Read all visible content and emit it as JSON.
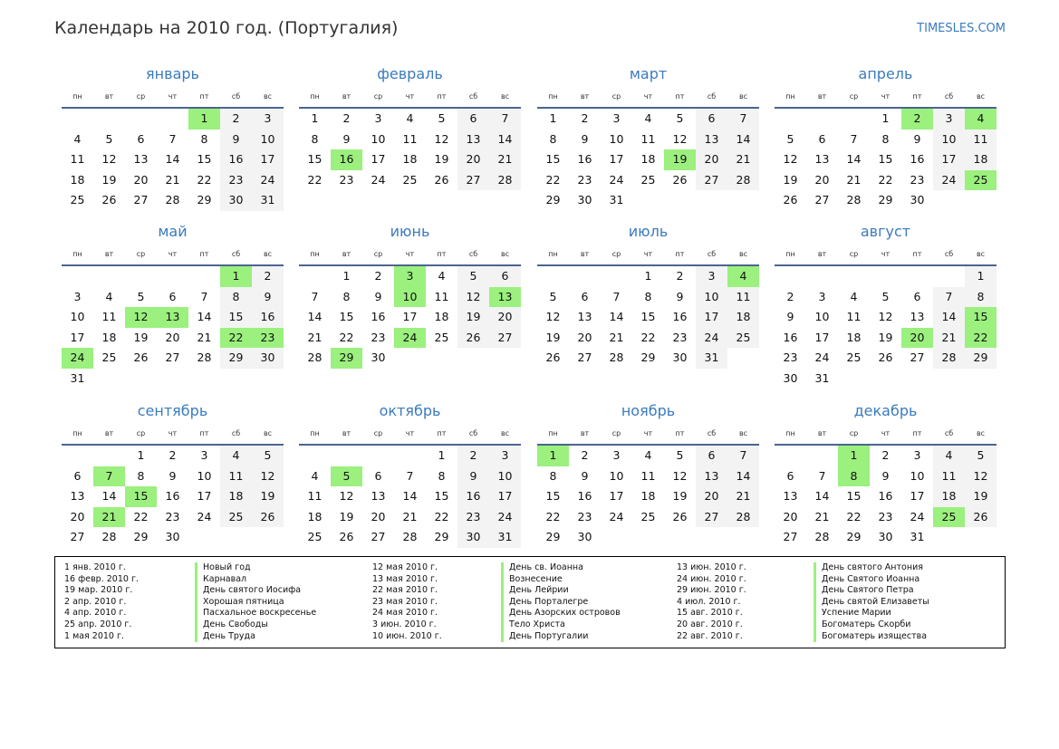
{
  "header": {
    "title": "Календарь на 2010 год. (Португалия)",
    "brand": "TIMESLES.COM"
  },
  "year": 2010,
  "colors": {
    "accent": "#3a7bbf",
    "holiday": "#9bf07e",
    "weekend": "#f3f3f3"
  },
  "weekdays": [
    "пн",
    "вт",
    "ср",
    "чт",
    "пт",
    "сб",
    "вс"
  ],
  "months": [
    {
      "name": "январь",
      "holidays": [
        1
      ]
    },
    {
      "name": "февраль",
      "holidays": [
        16
      ]
    },
    {
      "name": "март",
      "holidays": [
        19
      ]
    },
    {
      "name": "апрель",
      "holidays": [
        2,
        4,
        25
      ]
    },
    {
      "name": "май",
      "holidays": [
        1,
        12,
        13,
        22,
        23,
        24
      ]
    },
    {
      "name": "июнь",
      "holidays": [
        3,
        10,
        13,
        24,
        29
      ]
    },
    {
      "name": "июль",
      "holidays": [
        4
      ]
    },
    {
      "name": "август",
      "holidays": [
        15,
        20,
        22
      ]
    },
    {
      "name": "сентябрь",
      "holidays": [
        7,
        15,
        21
      ]
    },
    {
      "name": "октябрь",
      "holidays": [
        5
      ]
    },
    {
      "name": "ноябрь",
      "holidays": [
        1
      ]
    },
    {
      "name": "декабрь",
      "holidays": [
        1,
        8,
        25
      ]
    }
  ],
  "legend": [
    {
      "date": "1 янв. 2010 г.",
      "name": "Новый год"
    },
    {
      "date": "16 февр. 2010 г.",
      "name": "Карнавал"
    },
    {
      "date": "19 мар. 2010 г.",
      "name": "День святого Иосифа"
    },
    {
      "date": "2 апр. 2010 г.",
      "name": "Хорошая пятница"
    },
    {
      "date": "4 апр. 2010 г.",
      "name": "Пасхальное воскресенье"
    },
    {
      "date": "25 апр. 2010 г.",
      "name": "День Свободы"
    },
    {
      "date": "1 мая 2010 г.",
      "name": "День Труда"
    },
    {
      "date": "12 мая 2010 г.",
      "name": "День св. Иоанна"
    },
    {
      "date": "13 мая 2010 г.",
      "name": "Вознесение"
    },
    {
      "date": "22 мая 2010 г.",
      "name": "День Лейрии"
    },
    {
      "date": "23 мая 2010 г.",
      "name": "День Порталегре"
    },
    {
      "date": "24 мая 2010 г.",
      "name": "День Азорских островов"
    },
    {
      "date": "3 июн. 2010 г.",
      "name": "Тело Христа"
    },
    {
      "date": "10 июн. 2010 г.",
      "name": "День Португалии"
    },
    {
      "date": "13 июн. 2010 г.",
      "name": "День святого Антония"
    },
    {
      "date": "24 июн. 2010 г.",
      "name": "День Святого Иоанна"
    },
    {
      "date": "29 июн. 2010 г.",
      "name": "День Святого Петра"
    },
    {
      "date": "4 июл. 2010 г.",
      "name": "День святой Елизаветы"
    },
    {
      "date": "15 авг. 2010 г.",
      "name": "Успение Марии"
    },
    {
      "date": "20 авг. 2010 г.",
      "name": "Богоматерь Скорби"
    },
    {
      "date": "22 авг. 2010 г.",
      "name": "Богоматерь изящества"
    }
  ]
}
